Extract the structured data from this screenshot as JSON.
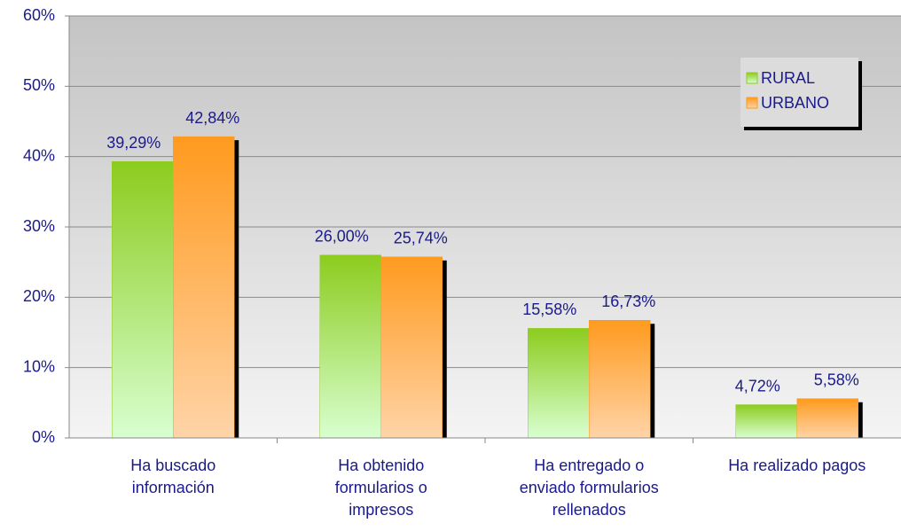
{
  "chart_data": {
    "type": "bar",
    "categories": [
      "Ha buscado\ninformación",
      "Ha obtenido\nformularios o\nimpresos",
      "Ha entregado o\nenviado formularios\nrellenados",
      "Ha realizado pagos"
    ],
    "series": [
      {
        "name": "RURAL",
        "color": "#8ccc1e",
        "values": [
          39.29,
          26.0,
          15.58,
          4.72
        ],
        "value_labels": [
          "39,29%",
          "26,00%",
          "15,58%",
          "4,72%"
        ]
      },
      {
        "name": "URBANO",
        "color": "#ff9a1e",
        "values": [
          42.84,
          25.74,
          16.73,
          5.58
        ],
        "value_labels": [
          "42,84%",
          "25,74%",
          "16,73%",
          "5,58%"
        ]
      }
    ],
    "ylim": [
      0,
      60
    ],
    "yticks": [
      {
        "value": 0,
        "label": "0%"
      },
      {
        "value": 10,
        "label": "10%"
      },
      {
        "value": 20,
        "label": "20%"
      },
      {
        "value": 30,
        "label": "30%"
      },
      {
        "value": 40,
        "label": "40%"
      },
      {
        "value": 50,
        "label": "50%"
      },
      {
        "value": 60,
        "label": "60%"
      }
    ],
    "grid": true,
    "legend": "upper right"
  }
}
